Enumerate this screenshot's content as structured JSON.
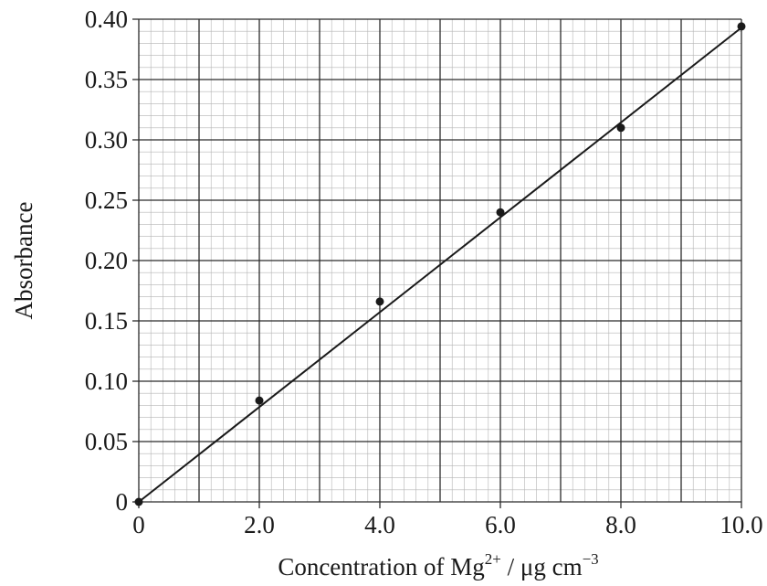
{
  "chart_data": {
    "type": "scatter",
    "title": "",
    "xlabel": {
      "main": "Concentration of Mg",
      "sup1": "2+",
      "middle": " / μg cm",
      "sup2": "−3"
    },
    "ylabel": "Absorbance",
    "xlim": [
      0,
      10
    ],
    "ylim": [
      0,
      0.4
    ],
    "grid": true,
    "x_ticks": [
      "0",
      "2.0",
      "4.0",
      "6.0",
      "8.0",
      "10.0"
    ],
    "x_tick_values": [
      0,
      2,
      4,
      6,
      8,
      10
    ],
    "y_ticks": [
      "0",
      "0.05",
      "0.10",
      "0.15",
      "0.20",
      "0.25",
      "0.30",
      "0.35",
      "0.40"
    ],
    "y_tick_values": [
      0,
      0.05,
      0.1,
      0.15,
      0.2,
      0.25,
      0.3,
      0.35,
      0.4
    ],
    "series": [
      {
        "x": [
          0,
          2,
          4,
          6,
          8,
          10
        ],
        "y": [
          0.0,
          0.084,
          0.166,
          0.24,
          0.31,
          0.394
        ]
      }
    ],
    "line_of_best_fit": {
      "x": [
        0,
        10
      ],
      "y": [
        0.0,
        0.393
      ]
    },
    "colors": {
      "major_grid": "#2b2b2b",
      "minor_grid": "#b4b4b4",
      "marker": "#1a1a1a",
      "line": "#1a1a1a"
    }
  }
}
